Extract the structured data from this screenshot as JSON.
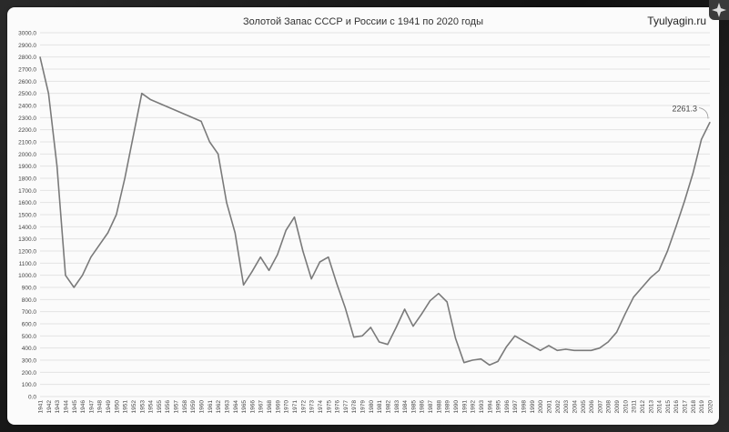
{
  "header": {
    "title": "Золотой Запас СССР и России с 1941 по 2020 годы",
    "brand": "Tyulyagin.ru"
  },
  "chart_data": {
    "type": "line",
    "title": "Золотой Запас СССР и России с 1941 по 2020 годы",
    "xlabel": "",
    "ylabel": "",
    "ylim": [
      0,
      3000
    ],
    "y_ticks": [
      "0.0",
      "100.0",
      "200.0",
      "300.0",
      "400.0",
      "500.0",
      "600.0",
      "700.0",
      "800.0",
      "900.0",
      "1000.0",
      "1100.0",
      "1200.0",
      "1300.0",
      "1400.0",
      "1500.0",
      "1600.0",
      "1700.0",
      "1800.0",
      "1900.0",
      "2000.0",
      "2100.0",
      "2200.0",
      "2300.0",
      "2400.0",
      "2500.0",
      "2600.0",
      "2700.0",
      "2800.0",
      "2900.0",
      "3000.0"
    ],
    "grid": true,
    "legend": "none",
    "line_color": "#7a7a7a",
    "x": [
      "1941",
      "1942",
      "1943",
      "1944",
      "1945",
      "1946",
      "1947",
      "1948",
      "1949",
      "1950",
      "1951",
      "1952",
      "1953",
      "1954",
      "1955",
      "1956",
      "1957",
      "1958",
      "1959",
      "1960",
      "1961",
      "1962",
      "1963",
      "1964",
      "1965",
      "1966",
      "1967",
      "1968",
      "1969",
      "1970",
      "1971",
      "1972",
      "1973",
      "1974",
      "1975",
      "1976",
      "1977",
      "1978",
      "1979",
      "1980",
      "1981",
      "1982",
      "1983",
      "1984",
      "1985",
      "1986",
      "1987",
      "1988",
      "1989",
      "1990",
      "1991",
      "1992",
      "1993",
      "1994",
      "1995",
      "1996",
      "1997",
      "1998",
      "1999",
      "2000",
      "2001",
      "2002",
      "2003",
      "2004",
      "2005",
      "2006",
      "2007",
      "2008",
      "2009",
      "2010",
      "2011",
      "2012",
      "2013",
      "2014",
      "2015",
      "2016",
      "2017",
      "2018",
      "2019",
      "2020"
    ],
    "values": [
      2800,
      2500,
      1900,
      1000,
      900,
      1000,
      1150,
      1250,
      1350,
      1500,
      1800,
      2150,
      2500,
      2450,
      2420,
      2390,
      2360,
      2330,
      2300,
      2270,
      2100,
      2000,
      1600,
      1350,
      920,
      1030,
      1150,
      1040,
      1170,
      1370,
      1480,
      1200,
      970,
      1110,
      1150,
      930,
      730,
      490,
      500,
      570,
      450,
      430,
      570,
      720,
      580,
      680,
      790,
      850,
      780,
      480,
      280,
      300,
      310,
      260,
      290,
      410,
      500,
      460,
      420,
      380,
      420,
      380,
      390,
      380,
      380,
      380,
      400,
      450,
      530,
      680,
      820,
      900,
      980,
      1040,
      1200,
      1400,
      1610,
      1840,
      2120,
      2261.3
    ],
    "annotations": [
      {
        "x": "2020",
        "label": "2261.3"
      }
    ]
  }
}
